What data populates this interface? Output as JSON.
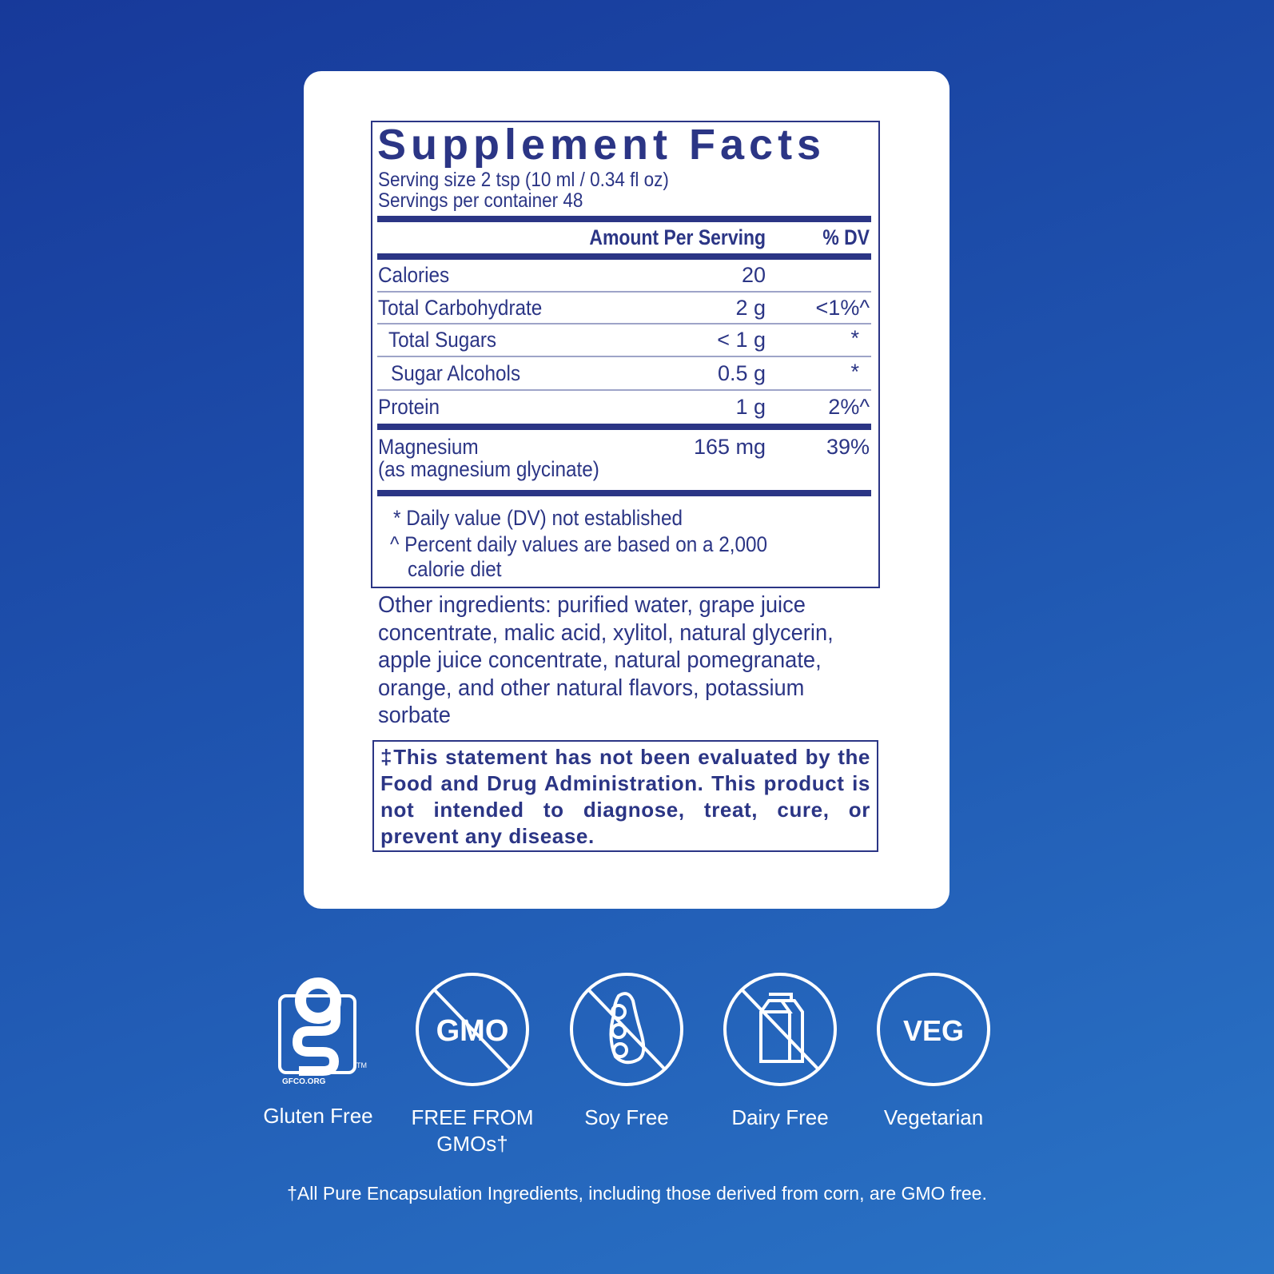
{
  "label": {
    "title": "Supplement Facts",
    "serving_size": "Serving size  2 tsp (10 ml / 0.34 fl oz)",
    "servings_per_container": "Servings per container  48",
    "header_amount": "Amount Per Serving",
    "header_dv": "% DV",
    "rows": [
      {
        "name": "Calories",
        "amount": "20",
        "dv": ""
      },
      {
        "name": "Total Carbohydrate",
        "amount": "2 g",
        "dv": "<1%^"
      },
      {
        "name": "Total Sugars",
        "amount": "< 1 g",
        "dv": "*"
      },
      {
        "name": "Sugar Alcohols",
        "amount": "0.5 g",
        "dv": "*"
      },
      {
        "name": "Protein",
        "amount": "1 g",
        "dv": "2%^"
      }
    ],
    "magnesium": {
      "name": "Magnesium",
      "sub": "(as magnesium glycinate)",
      "amount": "165 mg",
      "dv": "39%"
    },
    "footnotes": [
      "* Daily value (DV) not established",
      "^ Percent daily values are based on a 2,000",
      "calorie diet"
    ]
  },
  "other_ingredients": "Other ingredients: purified water, grape juice concentrate, malic acid, xylitol, natural glycerin, apple juice concentrate, natural pomegranate, orange, and other natural flavors, potassium sorbate",
  "disclaimer": "‡This statement has not been evaluated by the Food and Drug Administration. This product is not intended to diagnose, treat, cure, or prevent any disease.",
  "badges": [
    {
      "icon": "gluten-free-gfco-icon",
      "label": "Gluten Free",
      "logo_text": "GFCO.ORG"
    },
    {
      "icon": "no-gmo-icon",
      "label": "FREE FROM GMOs†",
      "icon_text": "GMO"
    },
    {
      "icon": "no-soy-icon",
      "label": "Soy Free"
    },
    {
      "icon": "no-dairy-icon",
      "label": "Dairy Free"
    },
    {
      "icon": "veg-icon",
      "label": "Vegetarian",
      "icon_text": "VEG"
    }
  ],
  "footer_note": "†All Pure Encapsulation Ingredients, including those derived from corn, are GMO free.",
  "colors": {
    "text": "#2b3585",
    "background_start": "#17399a",
    "background_end": "#2a74c6",
    "card": "#ffffff"
  }
}
